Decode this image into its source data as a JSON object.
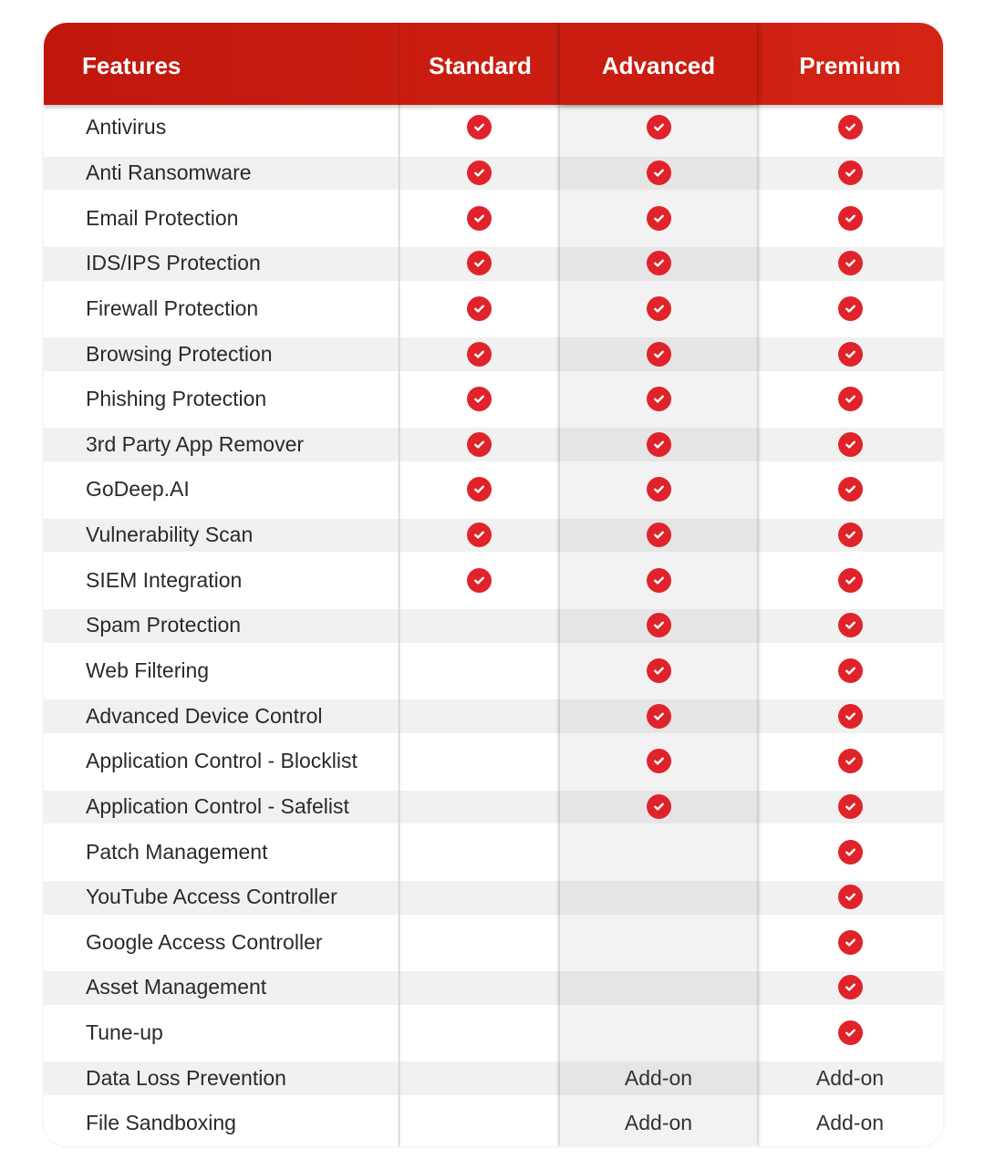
{
  "header": {
    "features": "Features",
    "standard": "Standard",
    "advanced": "Advanced",
    "premium": "Premium"
  },
  "colors": {
    "header": "#cc1f12",
    "check": "#e0232b"
  },
  "check_icon": "check-circle-icon",
  "rows": [
    {
      "feature": "Antivirus",
      "standard": "check",
      "advanced": "check",
      "premium": "check"
    },
    {
      "feature": "Anti Ransomware",
      "standard": "check",
      "advanced": "check",
      "premium": "check"
    },
    {
      "feature": "Email Protection",
      "standard": "check",
      "advanced": "check",
      "premium": "check"
    },
    {
      "feature": "IDS/IPS Protection",
      "standard": "check",
      "advanced": "check",
      "premium": "check"
    },
    {
      "feature": "Firewall Protection",
      "standard": "check",
      "advanced": "check",
      "premium": "check"
    },
    {
      "feature": "Browsing Protection",
      "standard": "check",
      "advanced": "check",
      "premium": "check"
    },
    {
      "feature": "Phishing Protection",
      "standard": "check",
      "advanced": "check",
      "premium": "check"
    },
    {
      "feature": "3rd Party App Remover",
      "standard": "check",
      "advanced": "check",
      "premium": "check"
    },
    {
      "feature": "GoDeep.AI",
      "standard": "check",
      "advanced": "check",
      "premium": "check"
    },
    {
      "feature": "Vulnerability Scan",
      "standard": "check",
      "advanced": "check",
      "premium": "check"
    },
    {
      "feature": "SIEM Integration",
      "standard": "check",
      "advanced": "check",
      "premium": "check"
    },
    {
      "feature": "Spam Protection",
      "standard": "",
      "advanced": "check",
      "premium": "check"
    },
    {
      "feature": "Web Filtering",
      "standard": "",
      "advanced": "check",
      "premium": "check"
    },
    {
      "feature": "Advanced Device Control",
      "standard": "",
      "advanced": "check",
      "premium": "check"
    },
    {
      "feature": "Application Control - Blocklist",
      "standard": "",
      "advanced": "check",
      "premium": "check"
    },
    {
      "feature": "Application Control - Safelist",
      "standard": "",
      "advanced": "check",
      "premium": "check"
    },
    {
      "feature": "Patch Management",
      "standard": "",
      "advanced": "",
      "premium": "check"
    },
    {
      "feature": "YouTube Access Controller",
      "standard": "",
      "advanced": "",
      "premium": "check"
    },
    {
      "feature": "Google Access Controller",
      "standard": "",
      "advanced": "",
      "premium": "check"
    },
    {
      "feature": "Asset Management",
      "standard": "",
      "advanced": "",
      "premium": "check"
    },
    {
      "feature": "Tune-up",
      "standard": "",
      "advanced": "",
      "premium": "check"
    },
    {
      "feature": "Data Loss Prevention",
      "standard": "",
      "advanced": "Add-on",
      "premium": "Add-on"
    },
    {
      "feature": "File Sandboxing",
      "standard": "",
      "advanced": "Add-on",
      "premium": "Add-on"
    }
  ]
}
